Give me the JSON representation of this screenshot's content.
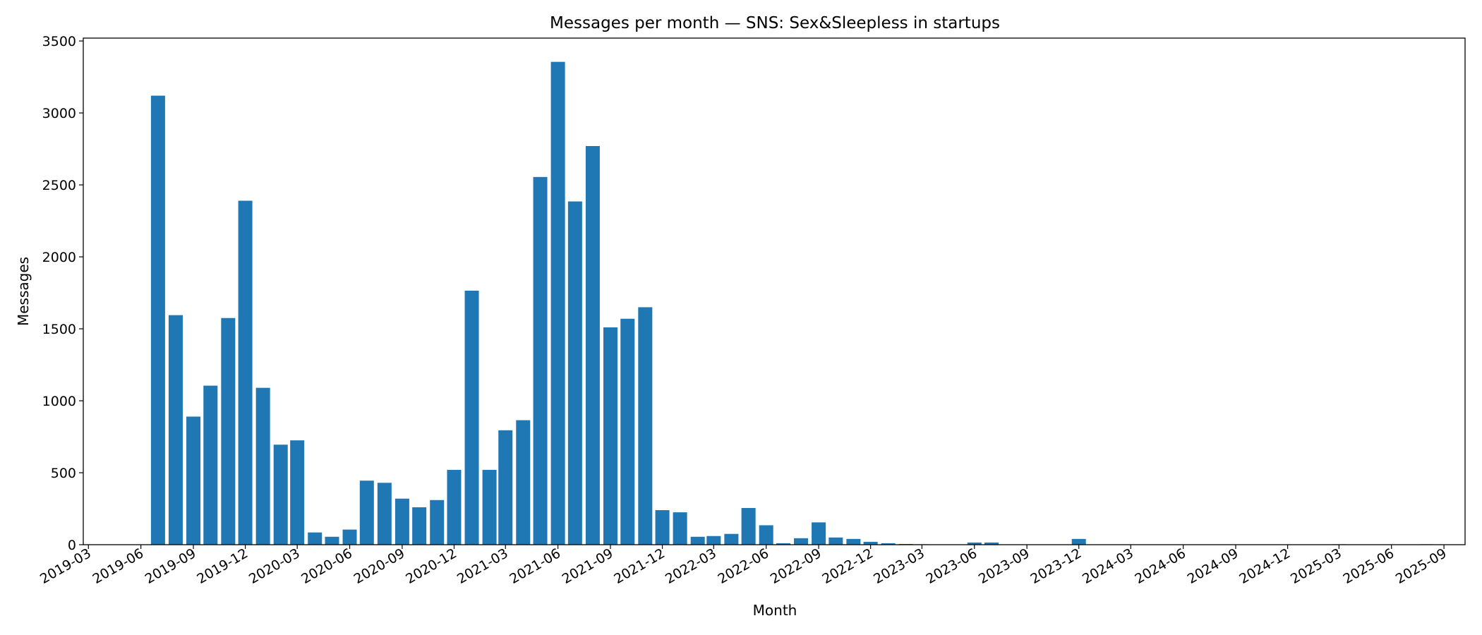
{
  "chart_data": {
    "type": "bar",
    "title": "Messages per month — SNS: Sex&Sleepless in startups",
    "xlabel": "Month",
    "ylabel": "Messages",
    "ylim": [
      0,
      3520
    ],
    "xlim": [
      "2019-02-20",
      "2025-10-08"
    ],
    "bar_color": "#1f77b4",
    "grid": false,
    "legend": "none",
    "x_ticks": [
      "2019-03",
      "2019-06",
      "2019-09",
      "2019-12",
      "2020-03",
      "2020-06",
      "2020-09",
      "2020-12",
      "2021-03",
      "2021-06",
      "2021-09",
      "2021-12",
      "2022-03",
      "2022-06",
      "2022-09",
      "2022-12",
      "2023-03",
      "2023-06",
      "2023-09",
      "2023-12",
      "2024-03",
      "2024-06",
      "2024-09",
      "2024-12",
      "2025-03",
      "2025-06",
      "2025-09"
    ],
    "y_ticks": [
      0,
      500,
      1000,
      1500,
      2000,
      2500,
      3000,
      3500
    ],
    "categories": [
      "2019-07",
      "2019-08",
      "2019-09",
      "2019-10",
      "2019-11",
      "2019-12",
      "2020-01",
      "2020-02",
      "2020-03",
      "2020-04",
      "2020-05",
      "2020-06",
      "2020-07",
      "2020-08",
      "2020-09",
      "2020-10",
      "2020-11",
      "2020-12",
      "2021-01",
      "2021-02",
      "2021-03",
      "2021-04",
      "2021-05",
      "2021-06",
      "2021-07",
      "2021-08",
      "2021-09",
      "2021-10",
      "2021-11",
      "2021-12",
      "2022-01",
      "2022-02",
      "2022-03",
      "2022-04",
      "2022-05",
      "2022-06",
      "2022-07",
      "2022-08",
      "2022-09",
      "2022-10",
      "2022-11",
      "2022-12",
      "2023-01",
      "2023-02",
      "2023-03",
      "2023-04",
      "2023-05",
      "2023-06",
      "2023-07",
      "2023-08",
      "2023-09",
      "2023-10",
      "2023-11",
      "2023-12",
      "2024-01",
      "2024-02",
      "2024-03",
      "2024-04",
      "2024-05",
      "2024-06",
      "2024-07",
      "2024-08",
      "2024-09",
      "2024-10",
      "2024-11",
      "2024-12",
      "2025-01",
      "2025-02",
      "2025-03",
      "2025-04",
      "2025-05",
      "2025-06",
      "2025-07",
      "2025-08"
    ],
    "values": [
      3120,
      1595,
      890,
      1105,
      1575,
      2390,
      1090,
      695,
      725,
      85,
      55,
      105,
      445,
      430,
      320,
      260,
      310,
      520,
      1765,
      520,
      795,
      865,
      2555,
      3355,
      2385,
      2770,
      1510,
      1570,
      1650,
      240,
      225,
      55,
      60,
      75,
      255,
      135,
      10,
      45,
      155,
      50,
      40,
      20,
      10,
      5,
      3,
      0,
      0,
      15,
      15,
      0,
      0,
      0,
      0,
      40,
      0,
      0,
      0,
      0,
      0,
      0,
      0,
      0,
      0,
      0,
      0,
      0,
      0,
      0,
      3,
      0,
      0,
      0,
      0,
      3
    ]
  }
}
